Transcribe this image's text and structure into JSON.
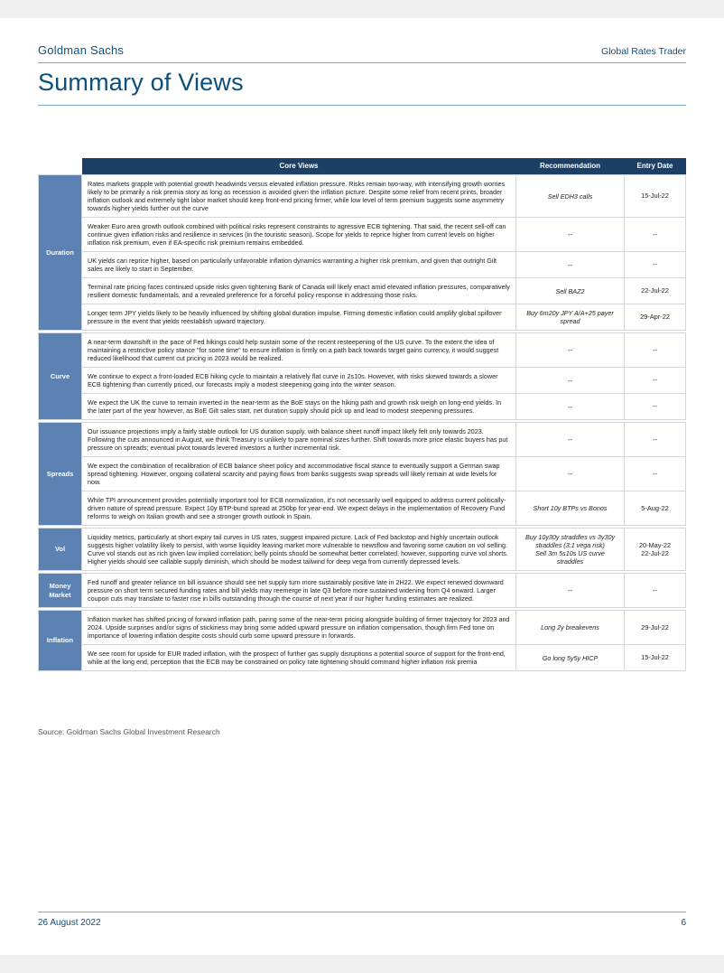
{
  "header": {
    "org": "Goldman Sachs",
    "doc_title": "Global Rates Trader"
  },
  "page_title": "Summary of Views",
  "table": {
    "header_bg": "#1c3f66",
    "header_fg": "#ffffff",
    "category_bg": "#5b82b2",
    "category_fg": "#ffffff",
    "border_color": "#d0d7de",
    "columns": {
      "views": "Core Views",
      "rec": "Recommendation",
      "date": "Entry Date"
    },
    "groups": [
      {
        "category": "Duration",
        "rows": [
          {
            "view": "Rates markets grapple with potential growth headwinds versus elevated inflation pressure. Risks remain two-way, with intensifying growth worries likely to be primarily a risk premia story as long as recession is avoided given the inflation picture. Despite some relief from recent prints, broader inflation outlook and extremely tight labor market should keep front-end pricing firmer, while low level of term premium suggests some asymmetry towards higher yields further out the curve",
            "rec": "Sell EDH3 calls",
            "date": "15-Jul-22"
          },
          {
            "view": "Weaker Euro area growth outlook combined with political risks represent constraints to agressive ECB tightening. That said, the recent sell-off can continue given inflation risks and resilience in services (in the touristic season). Scope for yields to reprice higher from current levels on higher inflation risk premium, even if EA-specific risk premium remains embedded.",
            "rec": "--",
            "date": "--"
          },
          {
            "view": "UK yields can reprice higher, based on particularly unfavorable inflation dynamics warranting a higher risk premium, and given that outright Gilt sales are likely to start in September.",
            "rec": "--",
            "date": "--"
          },
          {
            "view": "Terminal rate pricing faces continued upside risks given tightening Bank of Canada will likely enact amid elevated inflation pressures, comparatively resilient domestic fundamentals, and a revealed preference for a forceful policy response in addressing those risks.",
            "rec": "Sell BAZ2",
            "date": "22-Jul-22"
          },
          {
            "view": "Longer term JPY yields likely to be heavily influenced by shifting global duration impulse. Firming domestic inflation could amplify global spillover pressure in the event that yields reestablish upward trajectory.",
            "rec": "Buy 6m20y JPY A/A+25 payer spread",
            "date": "29-Apr-22"
          }
        ]
      },
      {
        "category": "Curve",
        "rows": [
          {
            "view": "A near-term downshift in the pace of Fed hikings could help sustain some of the recent resteepening of the US curve. To the extent the idea of maintaining  a restrictive policy stance \"for some time\" to ensure inflation is firmly on a path back towards target gains currency, it would suggest reduced likelihood that current cut pricing in 2023 would be realized.",
            "rec": "--",
            "date": "--"
          },
          {
            "view": "We continue to expect a front-loaded ECB hiking cycle to maintain a relatively flat curve in 2s10s. However, with risks skewed towards a slower ECB tightening than currently priced, our forecasts imply a modest steepening going into the winter season.",
            "rec": "--",
            "date": "--"
          },
          {
            "view": "We expect the UK the curve to remain inverted in the near-term as the BoE stays on the hiking path and growth risk weigh on long-end yields. In the later part of the year however, as BoE Gilt sales start, net duration supply should pick up and lead to modest steepening pressures.",
            "rec": "--",
            "date": "--"
          }
        ]
      },
      {
        "category": "Spreads",
        "rows": [
          {
            "view": "Our issuance projections imply a fairly stable outlook for US duration supply, with balance sheet runoff impact likely felt only towards 2023. Following the cuts announced in August, we think Treasury is unlikely to pare nominal sizes further. Shift towards more price elastic buyers has put pressure on spreads; eventual pivot towards levered investors a further incremental risk.",
            "rec": "--",
            "date": "--"
          },
          {
            "view": "We expect the combination of recalibration of ECB balance sheet policy and accommodative fiscal stance to eventually support a German swap spread tightening. However, ongoing collateral scarcity and paying flows from banks suggests swap spreads will likely remain at wide levels for now.",
            "rec": "--",
            "date": "--"
          },
          {
            "view": "While TPI announcement provides potentially important tool for ECB normalization, it's not necessarily well equipped to address current politically-driven nature of spread pressure. Expect 10y BTP-bund spread at 250bp for year-end. We expect delays in the implementation of Recovery Fund reforms to weigh on Italian growth and see a stronger growth outlook in Spain.",
            "rec": "Short 10y BTPs vs Bonos",
            "date": "5-Aug-22"
          }
        ]
      },
      {
        "category": "Vol",
        "rows": [
          {
            "view": "Liquidity metrics, particularly at short expiry tail curves in US rates, suggest impaired picture. Lack of Fed backstop and highly uncertain outlook suggests higher volatility likely to persist, with worse liquidity leaving market more vulnerable to newsflow and favoring some caution on vol selling. Curve vol stands out as rich given low implied correlation; belly points should be somewhat better correlated, however, supporting curve vol shorts. Higher yields should see callable supply diminish, which should be modest tailwind for deep vega from currently depressed levels.",
            "rec": "Buy 10y30y straddles vs 3y30y straddles (3:1 vega risk)\nSell 3m 5s10s US curve straddles",
            "date": "20-May-22\n22-Jul-22"
          }
        ]
      },
      {
        "category": "Money Market",
        "rows": [
          {
            "view": "Fed runoff and greater reliance on bill issuance should see net supply turn more sustainably positive late in 2H22. We expect renewed downward pressure on short term secured funding rates and bill yields may reemerge in late Q3 before more sustained widening from Q4 onward. Larger coupon cuts may translate to faster rise in bills outstanding through the course of next year if our higher funding estimates are realized.",
            "rec": "--",
            "date": "--"
          }
        ]
      },
      {
        "category": "Inflation",
        "rows": [
          {
            "view": "Inflation market has shifted pricing of forward inflation path, paring some of the near-term pricing alongside building of firmer trajectory for 2023 and 2024. Upside surprises and/or signs of stickiness may bring some added upward pressure on inflation compensation, though firm Fed tone on importance of lowering inflation despite costs should curb some upward pressure in forwards.",
            "rec": "Long 2y breakevens",
            "date": "29-Jul-22"
          },
          {
            "view": "We see room for upside for EUR traded inflation, with the prospect of further gas supply disruptions a potential source of support for the front-end, while at the long end, perception that the ECB may be constrained on policy rate tightening should command higher inflation risk premia",
            "rec": "Go long 5y5y HICP",
            "date": "15-Jul-22"
          }
        ]
      }
    ]
  },
  "source_line": "Source: Goldman Sachs Global Investment Research",
  "footer": {
    "date": "26 August 2022",
    "page": "6"
  },
  "colors": {
    "brand_text": "#0d4f7a",
    "rule": "#7fa8c9",
    "page_bg": "#ffffff"
  }
}
